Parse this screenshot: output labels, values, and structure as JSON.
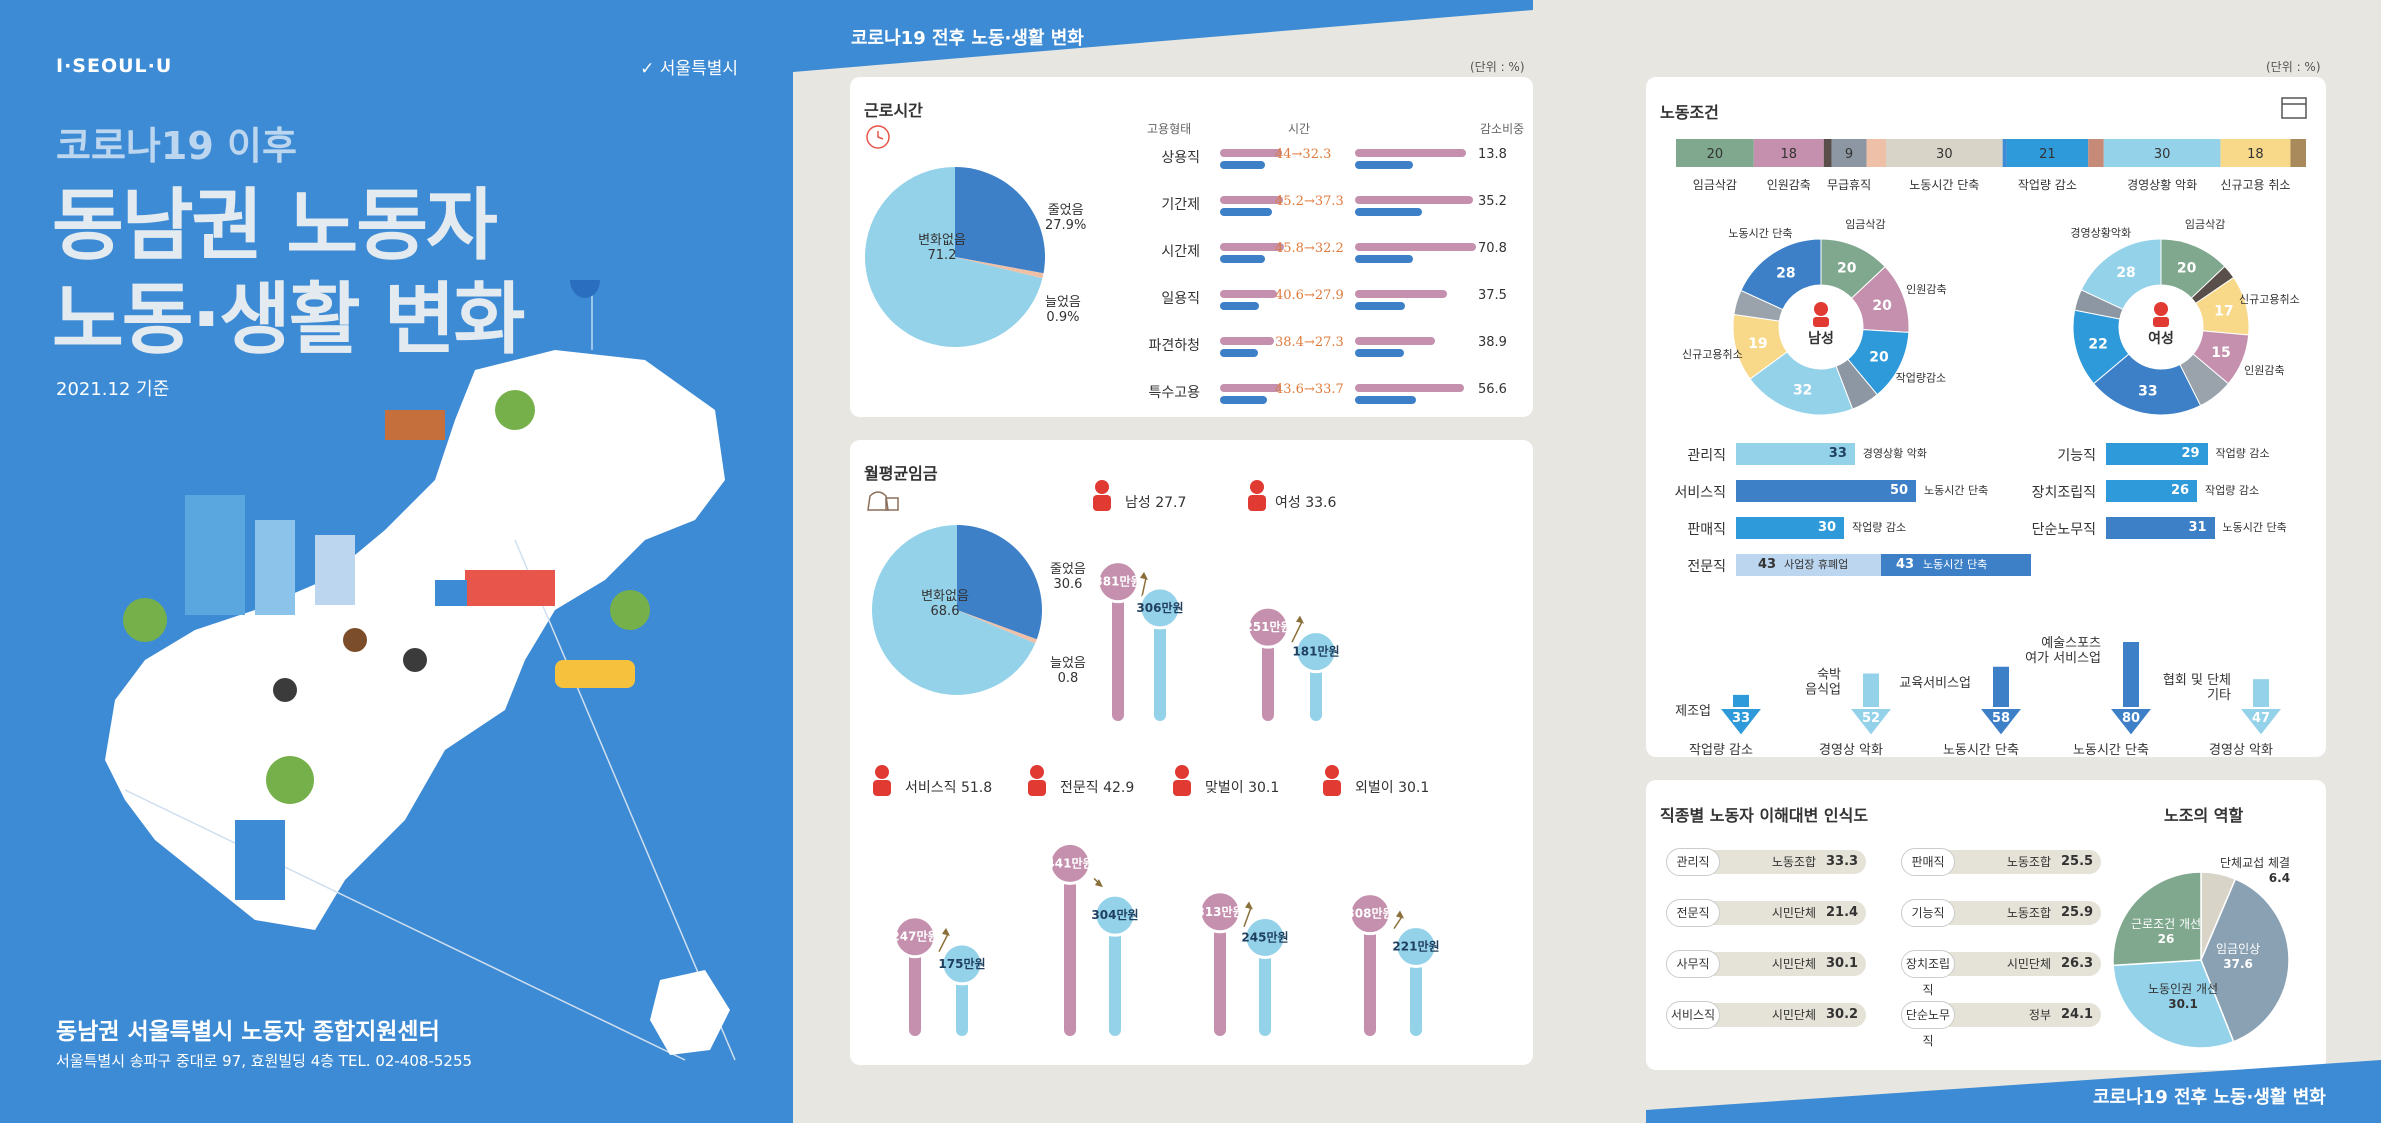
{
  "cover": {
    "brand": "I·SEOUL·U",
    "city": "서울특별시",
    "subtitle": "코로나19 이후",
    "title_line1": "동남권 노동자",
    "title_line2": "노동·생활 변화",
    "date": "2021.12 기준",
    "org": "동남권 서울특별시 노동자 종합지원센터",
    "address": "서울특별시 송파구 중대로 97, 효원빌딩 4층 TEL. 02-408-5255"
  },
  "mid": {
    "band_title": "코로나19 전후 노동·생활 변화",
    "unit": "(단위 : %)",
    "hours": {
      "title": "근로시간",
      "pie": [
        {
          "label": "변화없음",
          "value": 71.2
        },
        {
          "label": "줄었음",
          "value": 27.9
        },
        {
          "label": "늘었음",
          "value": 0.9
        }
      ],
      "headers": {
        "type": "고용형태",
        "time": "시간",
        "ratio": "감소비중"
      },
      "rows": [
        {
          "type": "상용직",
          "before": 44,
          "after": 32.3,
          "text": "44→32.3",
          "ratio": 13.8
        },
        {
          "type": "기간제",
          "before": 45.2,
          "after": 37.3,
          "text": "45.2→37.3",
          "ratio": 35.2
        },
        {
          "type": "시간제",
          "before": 45.8,
          "after": 32.2,
          "text": "45.8→32.2",
          "ratio": 70.8
        },
        {
          "type": "일용직",
          "before": 40.6,
          "after": 27.9,
          "text": "40.6→27.9",
          "ratio": 37.5
        },
        {
          "type": "파견하청",
          "before": 38.4,
          "after": 27.3,
          "text": "38.4→27.3",
          "ratio": 38.9
        },
        {
          "type": "특수고용",
          "before": 43.6,
          "after": 33.7,
          "text": "43.6→33.7",
          "ratio": 56.6
        }
      ]
    },
    "wage": {
      "title": "월평균임금",
      "pie": [
        {
          "label": "변화없음",
          "value": 68.6
        },
        {
          "label": "줄었음",
          "value": 30.6
        },
        {
          "label": "늘었음",
          "value": 0.8
        }
      ],
      "groups": [
        {
          "name": "남성",
          "ratio": "27.7",
          "before": 381,
          "after": 306
        },
        {
          "name": "여성",
          "ratio": "33.6",
          "before": 251,
          "after": 181
        },
        {
          "name": "서비스직",
          "ratio": "51.8",
          "before": 247,
          "after": 175
        },
        {
          "name": "전문직",
          "ratio": "42.9",
          "before": 441,
          "after": 304
        },
        {
          "name": "맞벌이",
          "ratio": "30.1",
          "before": 313,
          "after": 245
        },
        {
          "name": "외벌이",
          "ratio": "30.1",
          "before": 308,
          "after": 221
        }
      ],
      "unit_suffix": "만원"
    }
  },
  "right": {
    "unit": "(단위 : %)",
    "band_title": "코로나19 전후 노동·생활 변화",
    "conditions": {
      "title": "노동조건",
      "stack": [
        {
          "label": "임금삭감",
          "value": 20,
          "color": "#7fa88e"
        },
        {
          "label": "인원감축",
          "value": 18,
          "color": "#c490ad"
        },
        {
          "label": "",
          "value": 2,
          "color": "#5a4e4a"
        },
        {
          "label": "무급휴직",
          "value": 9,
          "color": "#8d97a3"
        },
        {
          "label": "",
          "value": 5,
          "color": "#eec0a8"
        },
        {
          "label": "노동시간 단축",
          "value": 30,
          "color": "#d9d4c8"
        },
        {
          "label": "",
          "value": 1,
          "color": "#3d8bd4"
        },
        {
          "label": "작업량 감소",
          "value": 21,
          "color": "#2f9ad9"
        },
        {
          "label": "",
          "value": 4,
          "color": "#c58a78"
        },
        {
          "label": "경영상황 악화",
          "value": 30,
          "color": "#94d2ea"
        },
        {
          "label": "신규고용 취소",
          "value": 18,
          "color": "#f8d98a"
        },
        {
          "label": "",
          "value": 4,
          "color": "#a88a5c"
        }
      ],
      "donut_male": {
        "center": "남성",
        "segments": [
          {
            "label": "임금삭감",
            "value": 20,
            "color": "#7fa88e"
          },
          {
            "label": "인원감축",
            "value": 20,
            "color": "#c490ad"
          },
          {
            "label": "작업량감소",
            "value": 20,
            "color": "#2f9ad9"
          },
          {
            "label": "",
            "value": 8,
            "color": "#8d97a3"
          },
          {
            "label": "경영상황악화",
            "value": 32,
            "color": "#94d2ea"
          },
          {
            "label": "신규고용취소",
            "value": 19,
            "color": "#f8d98a"
          },
          {
            "label": "",
            "value": 7,
            "color": "#9aa3ac"
          },
          {
            "label": "노동시간 단축",
            "value": 28,
            "color": "#3d80c8"
          }
        ]
      },
      "donut_female": {
        "center": "여성",
        "segments": [
          {
            "label": "임금삭감",
            "value": 20,
            "color": "#7fa88e"
          },
          {
            "label": "",
            "value": 4,
            "color": "#5a4e4a"
          },
          {
            "label": "신규고용취소",
            "value": 17,
            "color": "#f8d98a"
          },
          {
            "label": "인원감축",
            "value": 15,
            "color": "#c490ad"
          },
          {
            "label": "",
            "value": 10,
            "color": "#9aa3ac"
          },
          {
            "label": "노동시간 단축",
            "value": 33,
            "color": "#3d80c8"
          },
          {
            "label": "",
            "value": 22,
            "color": "#2f9ad9"
          },
          {
            "label": "",
            "value": 6,
            "color": "#8d97a3"
          },
          {
            "label": "경영상황악화",
            "value": 28,
            "color": "#94d2ea"
          }
        ]
      },
      "occupations_left": [
        {
          "name": "관리직",
          "value": 33,
          "note": "경영상황 악화",
          "color": "#94d2ea"
        },
        {
          "name": "서비스직",
          "value": 50,
          "note": "노동시간 단축",
          "color": "#3d80c8"
        },
        {
          "name": "판매직",
          "value": 30,
          "note": "작업량 감소",
          "color": "#2f9ad9"
        }
      ],
      "occupations_right": [
        {
          "name": "기능직",
          "value": 29,
          "note": "작업량 감소",
          "color": "#2f9ad9"
        },
        {
          "name": "장치조립직",
          "value": 26,
          "note": "작업량 감소",
          "color": "#2f9ad9"
        },
        {
          "name": "단순노무직",
          "value": 31,
          "note": "노동시간 단축",
          "color": "#3d80c8"
        }
      ],
      "professional": {
        "name": "전문직",
        "a": 43,
        "a_note": "사업장 휴폐업",
        "b": 43,
        "b_note": "노동시간 단축"
      },
      "industries": [
        {
          "name": "제조업",
          "value": 33,
          "note": "작업량 감소"
        },
        {
          "name": "숙박\n음식업",
          "value": 52,
          "note": "경영상 악화"
        },
        {
          "name": "교육서비스업",
          "value": 58,
          "note": "노동시간 단축"
        },
        {
          "name": "예술스포츠\n여가 서비스업",
          "value": 80,
          "note": "노동시간 단축"
        },
        {
          "name": "협회 및 단체\n기타",
          "value": 47,
          "note": "경영상 악화"
        }
      ]
    },
    "awareness": {
      "title": "직종별 노동자 이해대변 인식도",
      "items": [
        {
          "job": "관리직",
          "org": "노동조합",
          "value": "33.3"
        },
        {
          "job": "판매직",
          "org": "노동조합",
          "value": "25.5"
        },
        {
          "job": "전문직",
          "org": "시민단체",
          "value": "21.4"
        },
        {
          "job": "기능직",
          "org": "노동조합",
          "value": "25.9"
        },
        {
          "job": "사무직",
          "org": "시민단체",
          "value": "30.1"
        },
        {
          "job": "장치조립직",
          "org": "시민단체",
          "value": "26.3"
        },
        {
          "job": "서비스직",
          "org": "시민단체",
          "value": "30.2"
        },
        {
          "job": "단순노무직",
          "org": "정부",
          "value": "24.1"
        }
      ]
    },
    "union": {
      "title": "노조의 역할",
      "segments": [
        {
          "label": "단체교섭 체결",
          "value": 6.4,
          "color": "#d9d4c8"
        },
        {
          "label": "임금인상",
          "value": 37.6,
          "color": "#8aa0b3"
        },
        {
          "label": "노동인권 개선",
          "value": 30.1,
          "color": "#94d2ea"
        },
        {
          "label": "근로조건 개선",
          "value": 26.0,
          "color": "#7fa88e"
        }
      ]
    }
  },
  "chart_data": [
    {
      "type": "pie",
      "title": "근로시간",
      "categories": [
        "변화없음",
        "줄었음",
        "늘었음"
      ],
      "values": [
        71.2,
        27.9,
        0.9
      ]
    },
    {
      "type": "bar",
      "title": "근로시간",
      "categories": [
        "상용직",
        "기간제",
        "시간제",
        "일용직",
        "파견하청",
        "특수고용"
      ],
      "series": [
        {
          "name": "",
          "values": [
            44,
            45.2,
            45.8,
            40.6,
            38.4,
            43.6
          ]
        },
        {
          "name": "",
          "values": [
            32.3,
            37.3,
            32.2,
            27.9,
            27.3,
            33.7
          ]
        },
        {
          "name": "감소비중",
          "values": [
            13.8,
            35.2,
            70.8,
            37.5,
            38.9,
            56.6
          ]
        }
      ]
    },
    {
      "type": "pie",
      "title": "월평균임금",
      "categories": [
        "변화없음",
        "줄었음",
        "늘었음"
      ],
      "values": [
        68.6,
        30.6,
        0.8
      ]
    },
    {
      "type": "bar",
      "title": "월평균임금",
      "categories": [
        "남성",
        "여성",
        "서비스직",
        "전문직",
        "맞벌이",
        "외벌이"
      ],
      "series": [
        {
          "name": "",
          "values": [
            381,
            251,
            247,
            441,
            313,
            308
          ]
        },
        {
          "name": "",
          "values": [
            306,
            181,
            175,
            304,
            245,
            221
          ]
        }
      ]
    },
    {
      "type": "bar",
      "title": "노동조건",
      "categories": [
        "임금삭감",
        "인원감축",
        "무급휴직",
        "노동시간 단축",
        "작업량 감소",
        "경영상황 악화",
        "신규고용 취소"
      ],
      "values": [
        20,
        18,
        9,
        30,
        21,
        30,
        18
      ]
    },
    {
      "type": "pie",
      "title": "노조의 역할",
      "categories": [
        "단체교섭 체결",
        "임금인상",
        "노동인권 개선",
        "근로조건 개선"
      ],
      "values": [
        6.4,
        37.6,
        30.1,
        26.0
      ]
    }
  ]
}
